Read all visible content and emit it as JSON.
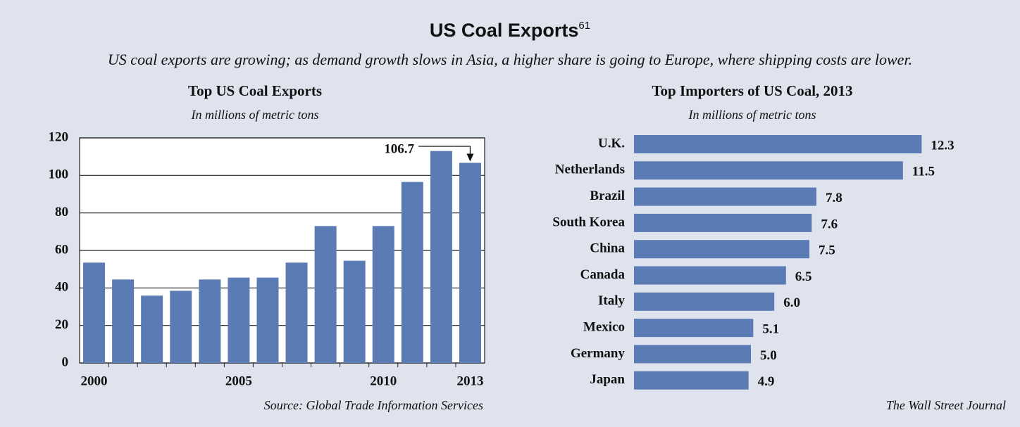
{
  "title": "US Coal Exports",
  "footnote": "61",
  "subtitle": "US coal exports are growing; as demand growth slows in Asia, a higher share is going to Europe, where shipping costs are lower.",
  "source": "The Wall Street Journal",
  "chart_data": [
    {
      "type": "bar",
      "title": "Top US Coal Exports",
      "subtitle": "In millions of metric tons",
      "categories": [
        "2000",
        null,
        null,
        null,
        null,
        "2005",
        null,
        null,
        null,
        null,
        "2010",
        null,
        null,
        "2013"
      ],
      "values": [
        53.5,
        44.5,
        35.9,
        38.5,
        44.5,
        45.5,
        45.5,
        53.5,
        73,
        54.5,
        73,
        96.5,
        113,
        106.7
      ],
      "color": "#5b7bb5",
      "ylim": [
        0,
        120
      ],
      "yticks": [
        0,
        20,
        40,
        60,
        80,
        100,
        120
      ],
      "grid": true,
      "annotation": "106.7",
      "source": "Source: Global Trade Information Services"
    },
    {
      "type": "hbar",
      "title": "Top Importers of US Coal, 2013",
      "subtitle": "In millions of metric tons",
      "categories": [
        "U.K.",
        "Netherlands",
        "Brazil",
        "South Korea",
        "China",
        "Canada",
        "Italy",
        "Mexico",
        "Germany",
        "Japan"
      ],
      "values": [
        12.3,
        11.5,
        7.8,
        7.6,
        7.5,
        6.5,
        6.0,
        5.1,
        5.0,
        4.9
      ],
      "value_labels": [
        "12.3",
        "11.5",
        "7.8",
        "7.6",
        "7.5",
        "6.5",
        "6.0",
        "5.1",
        "5.0",
        "4.9"
      ],
      "color": "#5b7bb5"
    }
  ]
}
